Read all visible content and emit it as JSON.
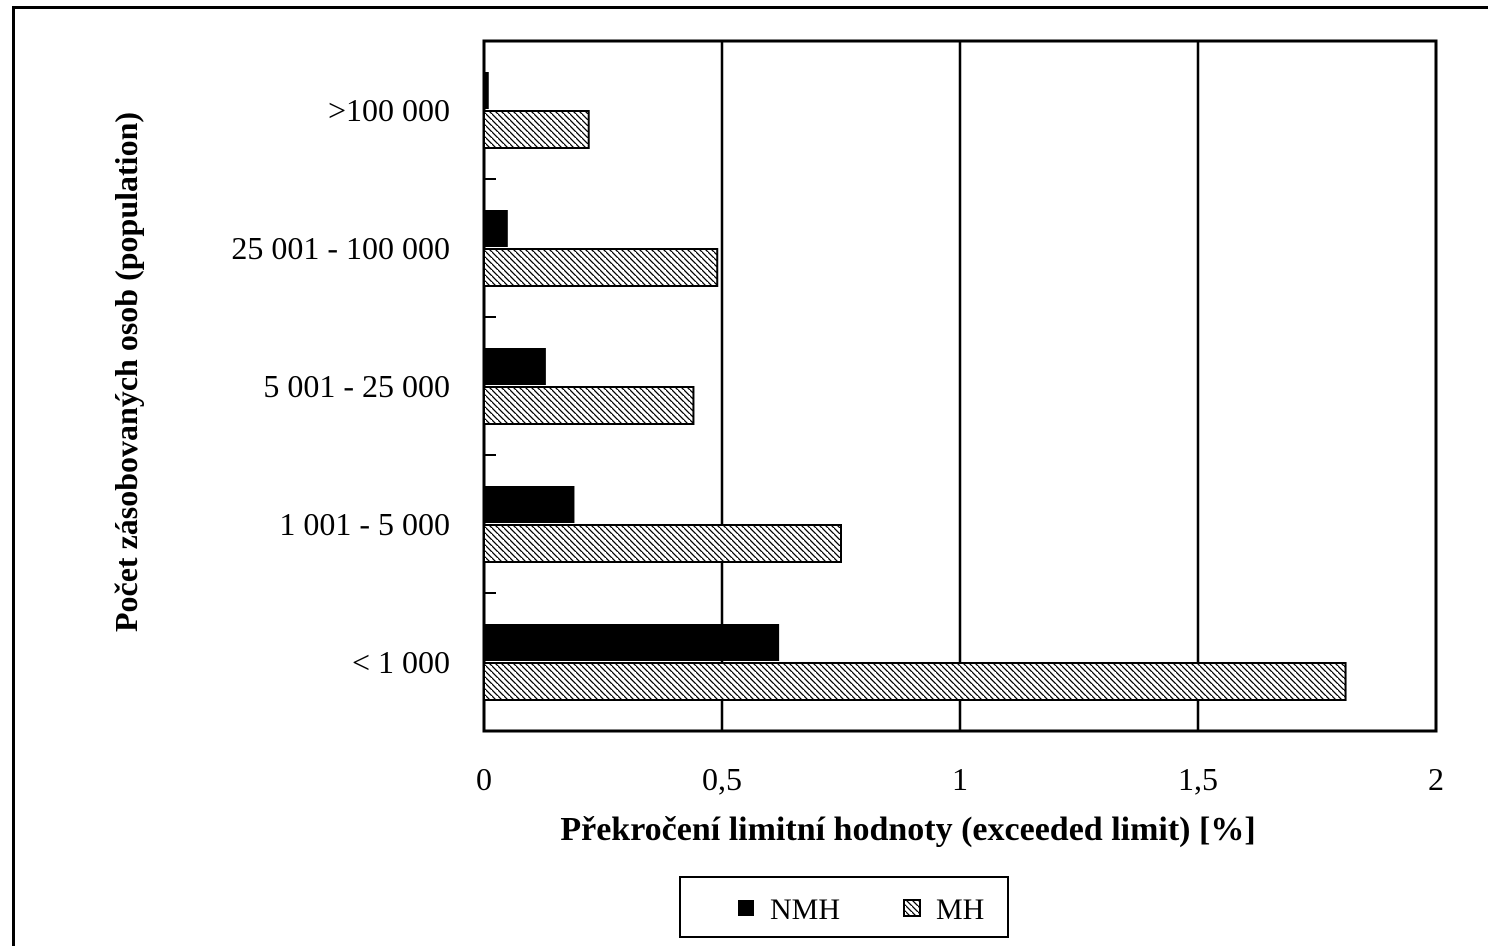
{
  "chart_data": {
    "type": "bar",
    "orientation": "horizontal",
    "categories": [
      ">100 000",
      "25 001 - 100 000",
      "5 001 - 25 000",
      "1 001 - 5 000",
      "< 1 000"
    ],
    "series": [
      {
        "name": "NMH",
        "values": [
          0.01,
          0.05,
          0.13,
          0.19,
          0.62
        ],
        "color": "#000000",
        "fill": "solid"
      },
      {
        "name": "MH",
        "values": [
          0.22,
          0.49,
          0.44,
          0.75,
          1.81
        ],
        "color": "#ffffff",
        "fill": "diagonal-hatch"
      }
    ],
    "xlabel": "Překročení limitní hodnoty (exceeded limit) [%]",
    "ylabel": "Počet zásobovaných osob  (population)",
    "xlim": [
      0,
      2
    ],
    "xticks": [
      "0",
      "0,5",
      "1",
      "1,5",
      "2"
    ],
    "xtick_values": [
      0,
      0.5,
      1,
      1.5,
      2
    ],
    "grid": "vertical",
    "legend_position": "bottom-center"
  }
}
